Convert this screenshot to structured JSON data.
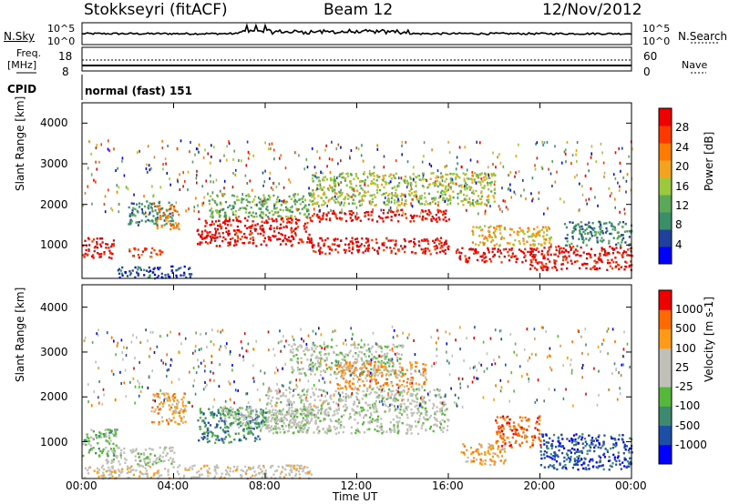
{
  "header": {
    "station": "Stokkseyri (fitACF)",
    "beam": "Beam 12",
    "date": "12/Nov/2012"
  },
  "strips": {
    "nsky_label": "N.Sky",
    "nsky_ticks": [
      "10^5",
      "10^0"
    ],
    "nsearch_label": "N.Search",
    "nsearch_ticks": [
      "10^5",
      "10^0"
    ],
    "freq_label": "Freq.",
    "freq_unit": "[MHz]",
    "freq_ticks": [
      "18",
      "8"
    ],
    "nave_label": "Nave",
    "nave_ticks": [
      "60",
      "0"
    ],
    "cpid_label": "CPID",
    "cpid_value": "normal (fast) 151"
  },
  "chart_data": [
    {
      "type": "heatmap",
      "name": "power-panel",
      "ylabel": "Slant Range [km]",
      "yticks": [
        "4000",
        "3000",
        "2000",
        "1000"
      ],
      "ylim": [
        180,
        4500
      ],
      "colorbar_label": "Power [dB]",
      "colorbar_ticks": [
        "28",
        "24",
        "20",
        "16",
        "12",
        "8",
        "4"
      ],
      "colorbar_colors": [
        "#0000ff",
        "#2040a0",
        "#3a8f68",
        "#5aa858",
        "#9cc83c",
        "#f4a41c",
        "#ff7a00",
        "#ff3800",
        "#ee0000"
      ],
      "bands": [
        {
          "t0": 0.0,
          "t1": 1.4,
          "r0": 700,
          "r1": 1200,
          "c": 8
        },
        {
          "t0": 1.5,
          "t1": 4.8,
          "r0": 200,
          "r1": 500,
          "c": 1
        },
        {
          "t0": 2.0,
          "t1": 3.5,
          "r0": 700,
          "r1": 950,
          "c": 7
        },
        {
          "t0": 2.0,
          "t1": 4.0,
          "r0": 1500,
          "r1": 2100,
          "c": 2
        },
        {
          "t0": 3.2,
          "t1": 4.2,
          "r0": 1400,
          "r1": 2000,
          "c": 6
        },
        {
          "t0": 5.0,
          "t1": 10.0,
          "r0": 1000,
          "r1": 1700,
          "c": 8
        },
        {
          "t0": 5.5,
          "t1": 10.0,
          "r0": 1700,
          "r1": 2300,
          "c": 3
        },
        {
          "t0": 10.0,
          "t1": 16.0,
          "r0": 800,
          "r1": 1200,
          "c": 8
        },
        {
          "t0": 10.0,
          "t1": 16.0,
          "r0": 1600,
          "r1": 1900,
          "c": 8
        },
        {
          "t0": 10.0,
          "t1": 18.0,
          "r0": 2000,
          "r1": 2800,
          "c": 4
        },
        {
          "t0": 16.3,
          "t1": 19.8,
          "r0": 600,
          "r1": 950,
          "c": 8
        },
        {
          "t0": 17.0,
          "t1": 20.5,
          "r0": 1000,
          "r1": 1500,
          "c": 5
        },
        {
          "t0": 19.5,
          "t1": 24.0,
          "r0": 400,
          "r1": 1000,
          "c": 8
        },
        {
          "t0": 21.0,
          "t1": 24.0,
          "r0": 1000,
          "r1": 1600,
          "c": 2
        }
      ]
    },
    {
      "type": "heatmap",
      "name": "velocity-panel",
      "ylabel": "Slant Range [km]",
      "yticks": [
        "4000",
        "3000",
        "2000",
        "1000"
      ],
      "ylim": [
        180,
        4500
      ],
      "colorbar_label": "Velocity [m s-1]",
      "colorbar_ticks": [
        "1000",
        "500",
        "100",
        "25",
        "-25",
        "-100",
        "-500",
        "-1000"
      ],
      "colorbar_colors": [
        "#0000ff",
        "#1d4fa8",
        "#3e8a70",
        "#56b83a",
        "#c0c0b8",
        "#c0c0b8",
        "#ff9a18",
        "#ff6a00",
        "#ee0000"
      ],
      "bands": [
        {
          "t0": 0.0,
          "t1": 1.5,
          "r0": 700,
          "r1": 1300,
          "c": 3
        },
        {
          "t0": 1.0,
          "t1": 4.0,
          "r0": 500,
          "r1": 900,
          "c": 4
        },
        {
          "t0": 3.0,
          "t1": 4.5,
          "r0": 1400,
          "r1": 2100,
          "c": 6
        },
        {
          "t0": 5.0,
          "t1": 8.0,
          "r0": 1000,
          "r1": 1800,
          "c": 2
        },
        {
          "t0": 6.0,
          "t1": 10.0,
          "r0": 1300,
          "r1": 1800,
          "c": 4
        },
        {
          "t0": 8.0,
          "t1": 16.0,
          "r0": 1200,
          "r1": 2200,
          "c": 4
        },
        {
          "t0": 9.0,
          "t1": 14.0,
          "r0": 2500,
          "r1": 3200,
          "c": 4
        },
        {
          "t0": 11.0,
          "t1": 15.0,
          "r0": 2200,
          "r1": 2800,
          "c": 6
        },
        {
          "t0": 16.5,
          "t1": 18.5,
          "r0": 500,
          "r1": 1000,
          "c": 6
        },
        {
          "t0": 18.0,
          "t1": 20.0,
          "r0": 900,
          "r1": 1600,
          "c": 7
        },
        {
          "t0": 20.0,
          "t1": 24.0,
          "r0": 400,
          "r1": 1200,
          "c": 1
        },
        {
          "t0": 0.0,
          "t1": 10.0,
          "r0": 200,
          "r1": 500,
          "c": 5
        }
      ]
    }
  ],
  "xaxis": {
    "ticks": [
      "00:00",
      "04:00",
      "08:00",
      "12:00",
      "16:00",
      "20:00",
      "00:00"
    ],
    "label": "Time UT"
  }
}
